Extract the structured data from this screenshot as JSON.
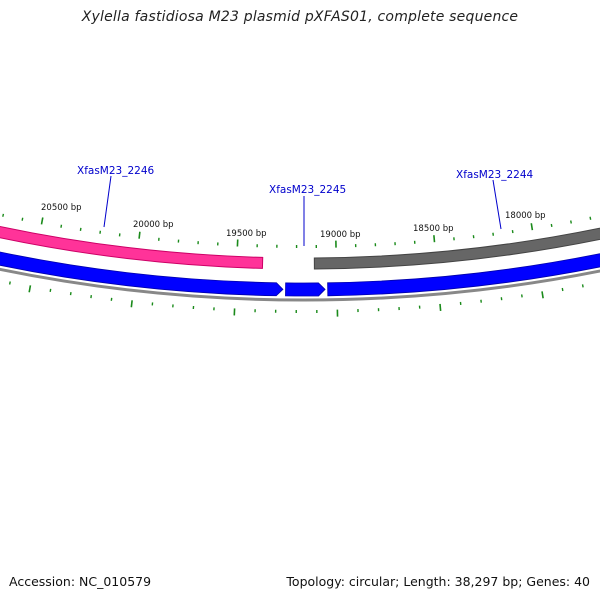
{
  "title": "Xylella fastidiosa M23 plasmid pXFAS01, complete sequence",
  "footer": {
    "accession": "Accession: NC_010579",
    "summary": "Topology: circular; Length: 38,297 bp; Genes: 40"
  },
  "colors": {
    "gene_pink": "#ff3399",
    "gene_dark": "#666666",
    "gene_blue": "#0000ff",
    "backbone": "#888888",
    "tick": "#1a8a1a",
    "gene_label": "#0000cc"
  },
  "tick_labels": [
    {
      "bp": 20500,
      "text": "20500 bp"
    },
    {
      "bp": 20000,
      "text": "20000 bp"
    },
    {
      "bp": 19500,
      "text": "19500 bp"
    },
    {
      "bp": 19000,
      "text": "19000 bp"
    },
    {
      "bp": 18500,
      "text": "18500 bp"
    },
    {
      "bp": 18000,
      "text": "18000 bp"
    }
  ],
  "genes": [
    {
      "name": "XfasM23_2246"
    },
    {
      "name": "XfasM23_2245"
    },
    {
      "name": "XfasM23_2244"
    }
  ]
}
